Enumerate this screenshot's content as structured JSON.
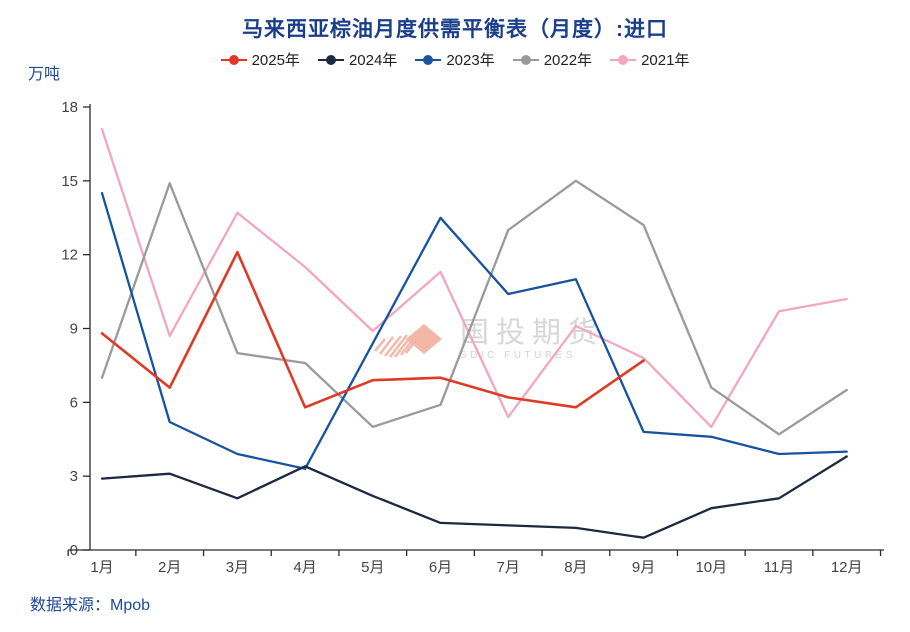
{
  "title": "马来西亚棕油月度供需平衡表（月度）:进口",
  "source": "数据来源：Mpob",
  "unit": "万吨",
  "watermark": {
    "name": "国投期货",
    "sub": "SDIC FUTURES",
    "logo_color": "#f2b3a3",
    "text_color": "#d7d7d7"
  },
  "colors": {
    "title": "#1a3e8a",
    "axis_line": "#2b2b2b",
    "axis_label": "#444444",
    "background": "#ffffff"
  },
  "chart_data": {
    "type": "line",
    "title": "马来西亚棕油月度供需平衡表（月度）:进口",
    "xlabel": "",
    "ylabel": "万吨",
    "ylim": [
      0,
      18
    ],
    "ytick_step": 3,
    "yticks": [
      0,
      3,
      6,
      9,
      12,
      15,
      18
    ],
    "grid": false,
    "legend_position": "top",
    "categories": [
      "1月",
      "2月",
      "3月",
      "4月",
      "5月",
      "6月",
      "7月",
      "8月",
      "9月",
      "10月",
      "11月",
      "12月"
    ],
    "series": [
      {
        "name": "2025年",
        "color": "#e03a26",
        "values": [
          8.8,
          6.6,
          12.1,
          5.8,
          6.9,
          7.0,
          6.2,
          5.8,
          7.7
        ]
      },
      {
        "name": "2024年",
        "color": "#1c2940",
        "values": [
          2.9,
          3.1,
          2.1,
          3.4,
          2.2,
          1.1,
          1.0,
          0.9,
          0.5,
          1.7,
          2.1,
          3.8
        ]
      },
      {
        "name": "2023年",
        "color": "#17539f",
        "values": [
          14.5,
          5.2,
          3.9,
          3.3,
          8.4,
          13.5,
          10.4,
          11.0,
          4.8,
          4.6,
          3.9,
          4.0
        ]
      },
      {
        "name": "2022年",
        "color": "#9a9a9a",
        "values": [
          7.0,
          14.9,
          8.0,
          7.6,
          5.0,
          5.9,
          13.0,
          15.0,
          13.2,
          6.6,
          4.7,
          6.5
        ]
      },
      {
        "name": "2021年",
        "color": "#f3a6c0",
        "values": [
          17.1,
          8.7,
          13.7,
          11.5,
          8.9,
          11.3,
          5.4,
          9.1,
          7.8,
          5.0,
          9.7,
          10.2
        ]
      }
    ]
  }
}
